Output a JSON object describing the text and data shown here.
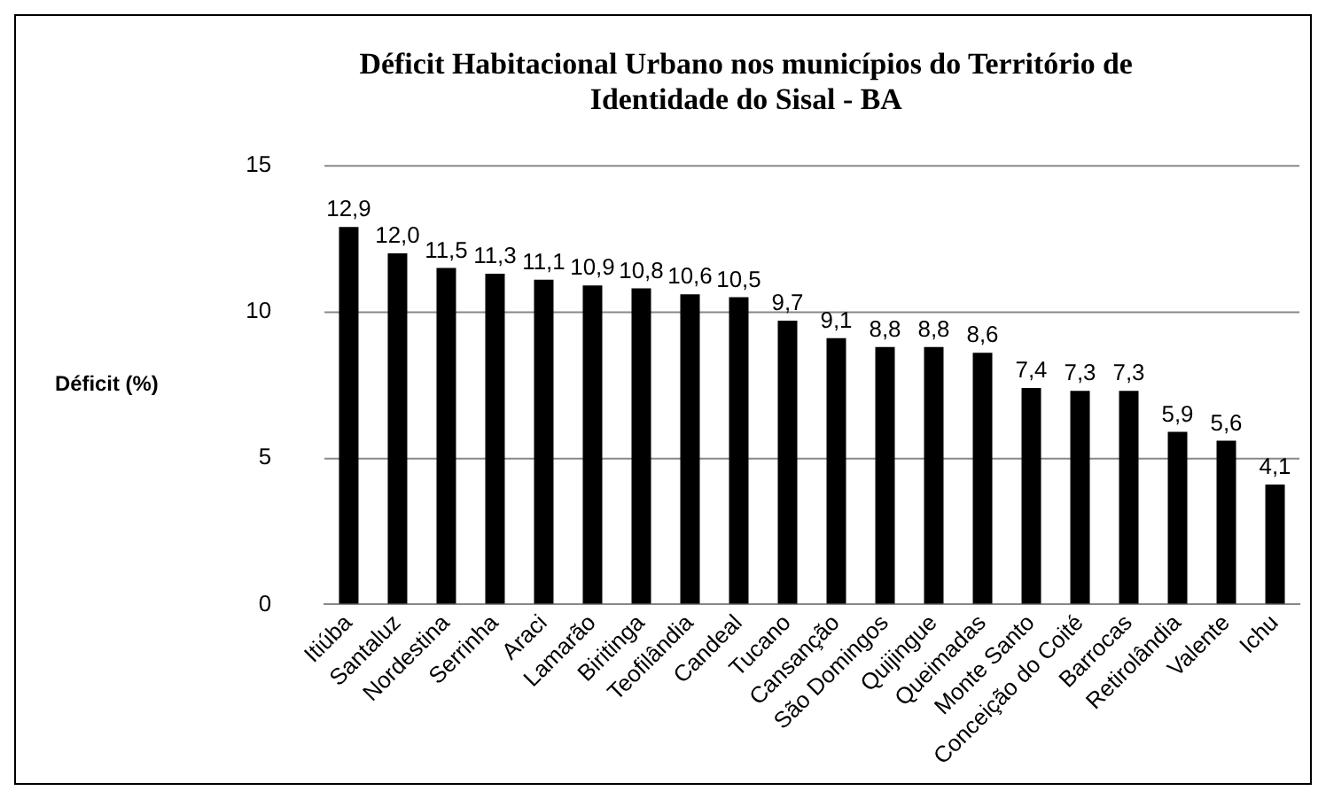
{
  "chart_data": {
    "type": "bar",
    "title": "Déficit Habitacional Urbano nos municípios do Território de Identidade do Sisal - BA",
    "ylabel": "Déficit (%)",
    "categories": [
      "Itiúba",
      "Santaluz",
      "Nordestina",
      "Serrinha",
      "Araci",
      "Lamarão",
      "Biritinga",
      "Teofilândia",
      "Candeal",
      "Tucano",
      "Cansanção",
      "São Domingos",
      "Quijingue",
      "Queimadas",
      "Monte Santo",
      "Conceição do Coité",
      "Barrocas",
      "Retirolândia",
      "Valente",
      "Ichu"
    ],
    "values": [
      12.9,
      12.0,
      11.5,
      11.3,
      11.1,
      10.9,
      10.8,
      10.6,
      10.5,
      9.7,
      9.1,
      8.8,
      8.8,
      8.6,
      7.4,
      7.3,
      7.3,
      5.9,
      5.6,
      4.1
    ],
    "value_labels": [
      "12,9",
      "12,0",
      "11,5",
      "11,3",
      "11,1",
      "10,9",
      "10,8",
      "10,6",
      "10,5",
      "9,7",
      "9,1",
      "8,8",
      "8,8",
      "8,6",
      "7,4",
      "7,3",
      "7,3",
      "5,9",
      "5,6",
      "4,1"
    ],
    "color": "#000000",
    "ylim": [
      0,
      15
    ],
    "yticks": [
      0,
      5,
      10,
      15
    ],
    "grid": "y",
    "legend": false
  }
}
